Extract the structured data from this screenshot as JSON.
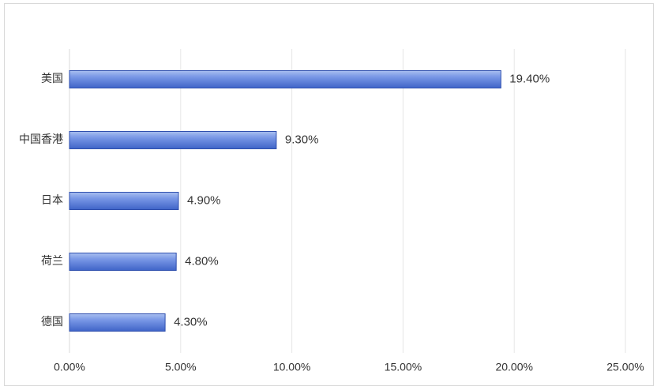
{
  "chart_data": {
    "type": "bar",
    "orientation": "horizontal",
    "categories": [
      "美国",
      "中国香港",
      "日本",
      "荷兰",
      "德国"
    ],
    "values": [
      19.4,
      9.3,
      4.9,
      4.8,
      4.3
    ],
    "value_labels": [
      "19.40%",
      "9.30%",
      "4.90%",
      "4.80%",
      "4.30%"
    ],
    "color": "#4a72d4",
    "xlim": [
      0,
      25
    ],
    "xticks": [
      {
        "value": 0,
        "label": "0.00%"
      },
      {
        "value": 5,
        "label": "5.00%"
      },
      {
        "value": 10,
        "label": "10.00%"
      },
      {
        "value": 15,
        "label": "15.00%"
      },
      {
        "value": 20,
        "label": "20.00%"
      },
      {
        "value": 25,
        "label": "25.00%"
      }
    ],
    "grid": true
  }
}
